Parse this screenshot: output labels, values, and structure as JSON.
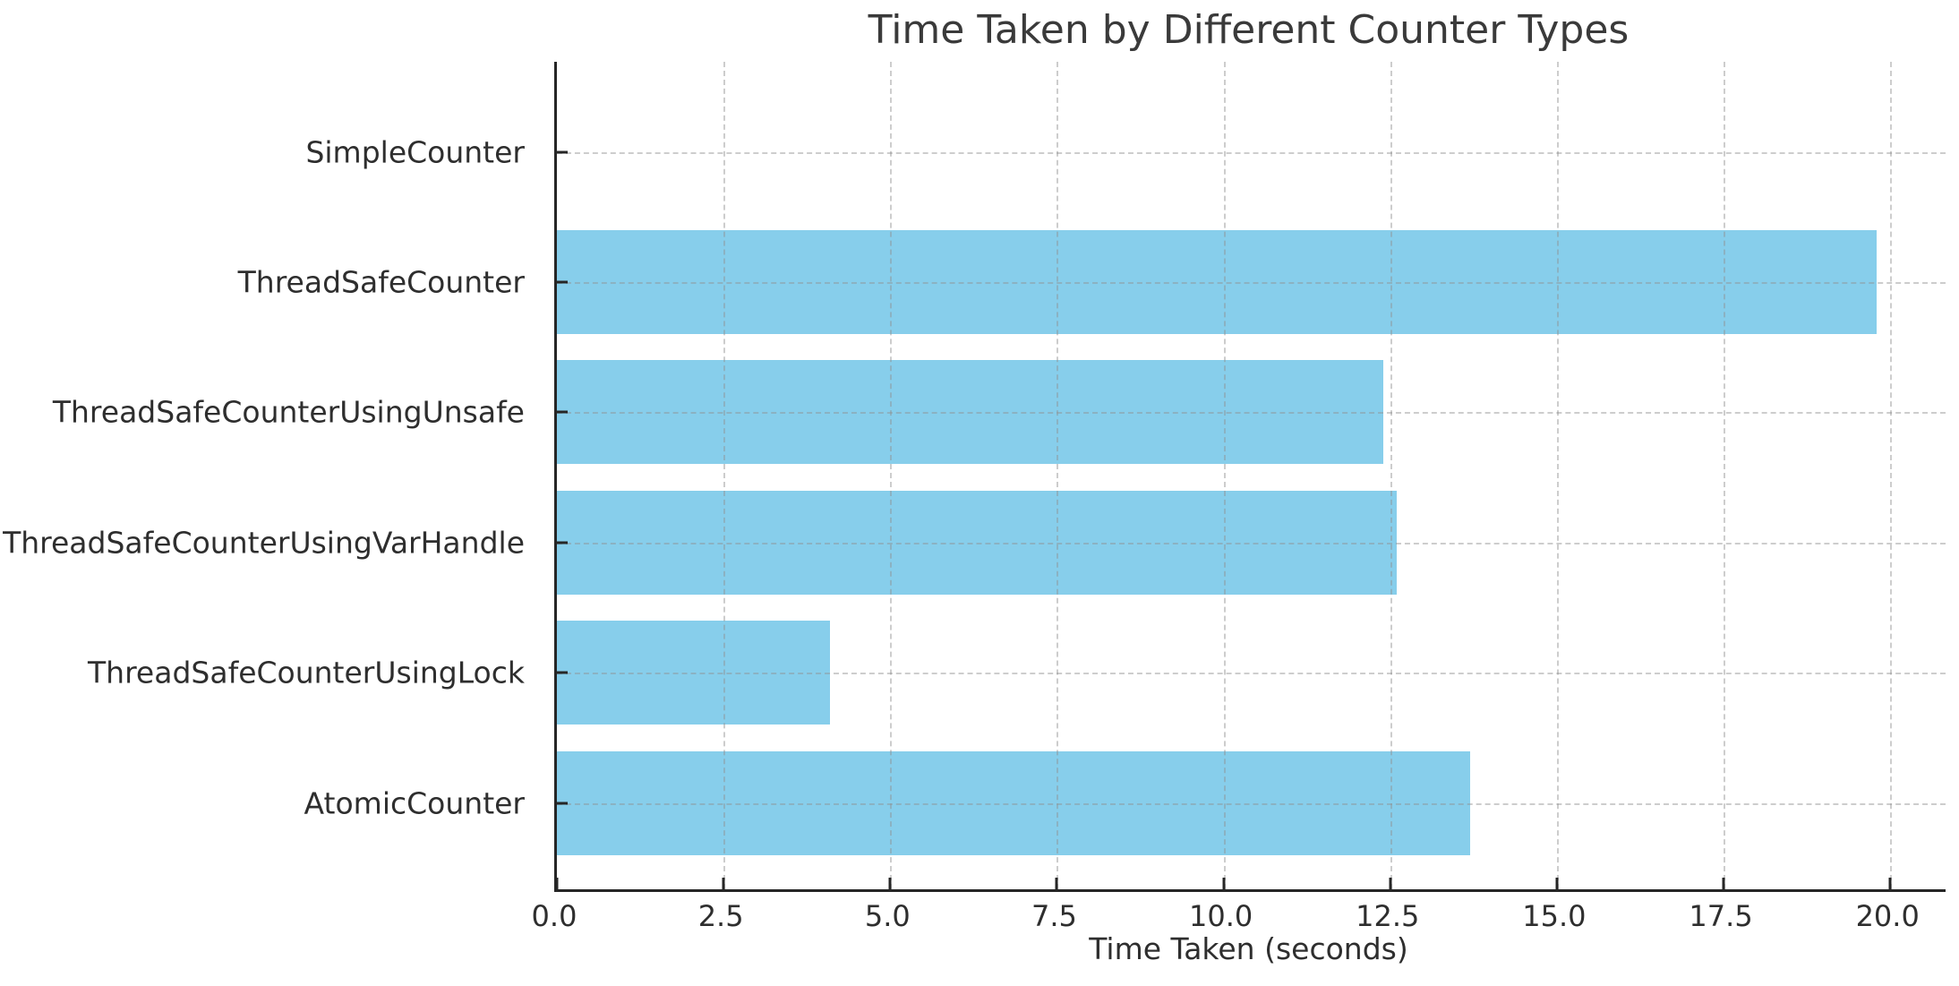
{
  "title": "Time Taken by Different Counter Types",
  "xlabel": "Time Taken (seconds)",
  "chart_data": {
    "type": "bar",
    "orientation": "horizontal",
    "title": "Time Taken by Different Counter Types",
    "categories": [
      "SimpleCounter",
      "ThreadSafeCounter",
      "ThreadSafeCounterUsingUnsafe",
      "ThreadSafeCounterUsingVarHandle",
      "ThreadSafeCounterUsingLock",
      "AtomicCounter"
    ],
    "values": [
      0.0,
      19.8,
      12.4,
      12.6,
      4.1,
      13.7
    ],
    "xlabel": "Time Taken (seconds)",
    "ylabel": "",
    "xlim": [
      0,
      20.83
    ],
    "xticks": [
      0.0,
      2.5,
      5.0,
      7.5,
      10.0,
      12.5,
      15.0,
      17.5,
      20.0
    ],
    "xtick_labels": [
      "0.0",
      "2.5",
      "5.0",
      "7.5",
      "10.0",
      "12.5",
      "15.0",
      "17.5",
      "20.0"
    ],
    "bar_color": "#87CEEB",
    "grid": "both-axes dashed, drawn over bars",
    "legend": "none"
  },
  "colors": {
    "bar": "#87CEEB",
    "grid_dash": "rgba(145,145,145,0.45)",
    "spine": "#262626",
    "text": "#2e2e2e",
    "title_text": "#3a3a3a",
    "background": "#ffffff"
  }
}
